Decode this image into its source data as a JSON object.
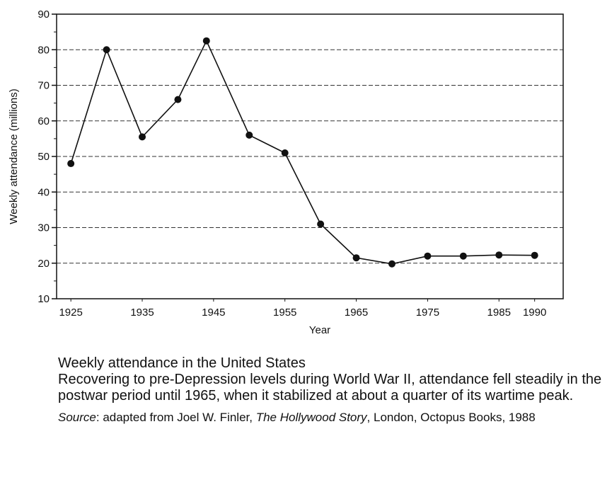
{
  "chart_data": {
    "type": "line",
    "ylabel": "Weekly attendance (millions)",
    "xlabel": "Year",
    "ylim": [
      10,
      90
    ],
    "xlim": [
      1923,
      1994
    ],
    "yticks": [
      10,
      20,
      30,
      40,
      50,
      60,
      70,
      80,
      90
    ],
    "xticks": [
      1925,
      1935,
      1945,
      1955,
      1965,
      1975,
      1985,
      1990
    ],
    "grid": "dashed horizontal",
    "series": [
      {
        "x": [
          1925,
          1930,
          1935,
          1940,
          1944,
          1950,
          1955,
          1960,
          1965,
          1970,
          1975,
          1980,
          1985,
          1990
        ],
        "y": [
          48,
          80,
          55.5,
          66,
          82.5,
          56,
          51,
          31,
          21.5,
          19.8,
          22,
          22,
          22.3,
          22.2
        ]
      }
    ]
  },
  "caption": {
    "title": "Weekly attendance in the United States",
    "description": "Recovering to pre-Depression levels during World War II, attendance fell steadily in the postwar period until 1965, when it stabilized at about a quarter of its wartime peak.",
    "source_label": "Source",
    "source_prefix": ": adapted from Joel W. Finler, ",
    "source_book": "The Hollywood Story",
    "source_suffix": ", London, Octopus Books, 1988"
  }
}
